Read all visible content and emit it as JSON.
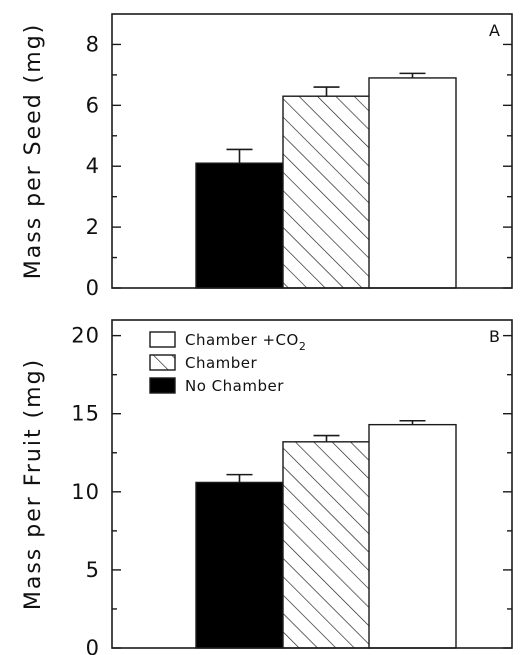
{
  "chart_data": [
    {
      "type": "bar",
      "panel_label": "A",
      "ylabel": "Mass per Seed (mg)",
      "ylim": [
        0,
        9
      ],
      "yticks": [
        0,
        2,
        4,
        6,
        8
      ],
      "series": [
        {
          "name": "No Chamber",
          "value": 4.1,
          "error": 0.45,
          "fill": "#000000",
          "pattern": "solid"
        },
        {
          "name": "Chamber",
          "value": 6.3,
          "error": 0.3,
          "fill": "#ffffff",
          "pattern": "hatch"
        },
        {
          "name": "Chamber +CO2",
          "value": 6.9,
          "error": 0.15,
          "fill": "#ffffff",
          "pattern": "open"
        }
      ]
    },
    {
      "type": "bar",
      "panel_label": "B",
      "ylabel": "Mass per Fruit (mg)",
      "ylim": [
        0,
        21
      ],
      "yticks": [
        0,
        5,
        10,
        15,
        20
      ],
      "series": [
        {
          "name": "No Chamber",
          "value": 10.6,
          "error": 0.5,
          "fill": "#000000",
          "pattern": "solid"
        },
        {
          "name": "Chamber",
          "value": 13.2,
          "error": 0.4,
          "fill": "#ffffff",
          "pattern": "hatch"
        },
        {
          "name": "Chamber +CO2",
          "value": 14.3,
          "error": 0.25,
          "fill": "#ffffff",
          "pattern": "open"
        }
      ],
      "legend": {
        "placement": "top-left",
        "entries": [
          {
            "label": "Chamber +CO",
            "subscript": "2",
            "pattern": "open"
          },
          {
            "label": "Chamber",
            "subscript": "",
            "pattern": "hatch"
          },
          {
            "label": "No Chamber",
            "subscript": "",
            "pattern": "solid"
          }
        ]
      }
    }
  ]
}
